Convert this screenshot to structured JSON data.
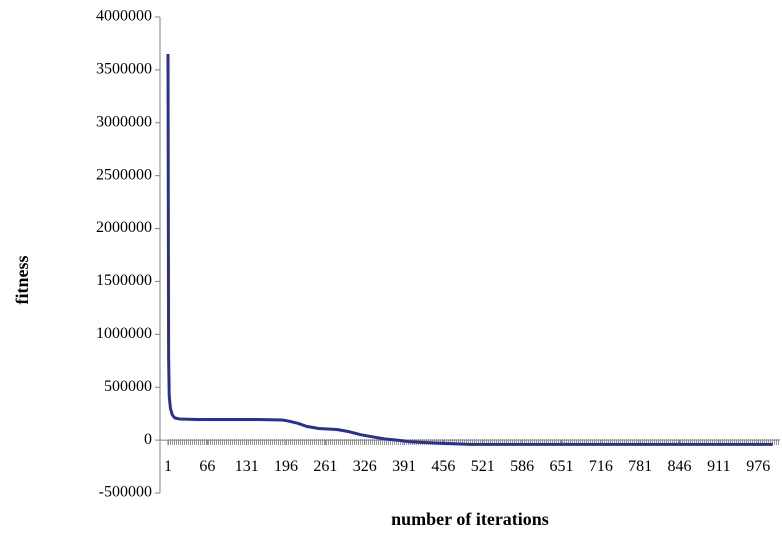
{
  "chart_data": {
    "type": "line",
    "x_label": "number of iterations",
    "y_label": "fitness",
    "x": [
      1,
      2,
      3,
      5,
      8,
      12,
      20,
      50,
      100,
      150,
      190,
      200,
      215,
      230,
      250,
      280,
      300,
      320,
      340,
      360,
      380,
      400,
      450,
      500,
      600,
      700,
      800,
      900,
      1000
    ],
    "series": [
      {
        "name": "fitness",
        "color": "#2b2f8f",
        "values": [
          3650000,
          800000,
          420000,
          300000,
          240000,
          210000,
          200000,
          195000,
          195000,
          195000,
          190000,
          180000,
          160000,
          130000,
          110000,
          100000,
          80000,
          50000,
          30000,
          10000,
          0,
          -15000,
          -30000,
          -40000,
          -40000,
          -40000,
          -40000,
          -40000,
          -40000
        ]
      }
    ],
    "xlim": [
      1,
      1012
    ],
    "xticks": [
      1,
      66,
      131,
      196,
      261,
      326,
      391,
      456,
      521,
      586,
      651,
      716,
      781,
      846,
      911,
      976
    ],
    "ylim": [
      -500000,
      4000000
    ],
    "yticks": [
      -500000,
      0,
      500000,
      1000000,
      1500000,
      2000000,
      2500000,
      3000000,
      3500000,
      4000000
    ],
    "grid": false
  }
}
